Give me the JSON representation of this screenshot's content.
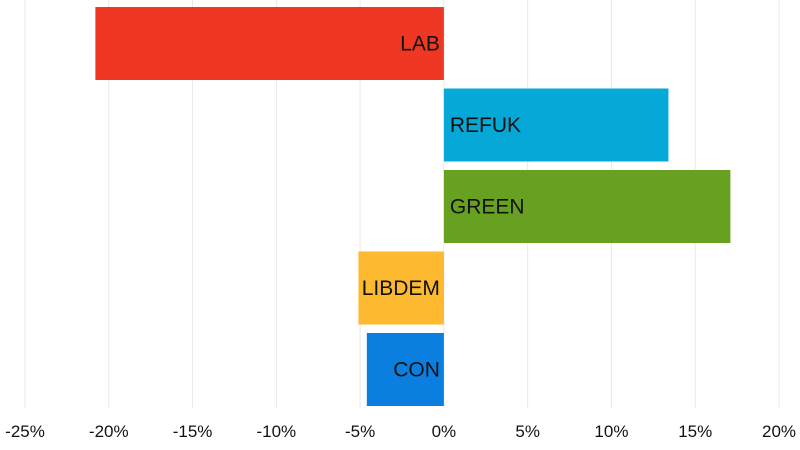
{
  "chart_data": {
    "type": "bar",
    "orientation": "horizontal",
    "categories": [
      "LAB",
      "REFUK",
      "GREEN",
      "LIBDEM",
      "CON"
    ],
    "values": [
      -20.8,
      13.4,
      17.1,
      -5.1,
      -4.6
    ],
    "colors": [
      "#ee3823",
      "#05a8d6",
      "#68a121",
      "#fdb92f",
      "#0a7fe0"
    ],
    "xlim": [
      -25,
      20
    ],
    "x_ticks": [
      -25,
      -20,
      -15,
      -10,
      -5,
      0,
      5,
      10,
      15,
      20
    ],
    "x_tick_labels": [
      "-25%",
      "-20%",
      "-15%",
      "-10%",
      "-5%",
      "0%",
      "5%",
      "10%",
      "15%",
      "20%"
    ],
    "grid": true,
    "bar_labels_inside": true
  }
}
